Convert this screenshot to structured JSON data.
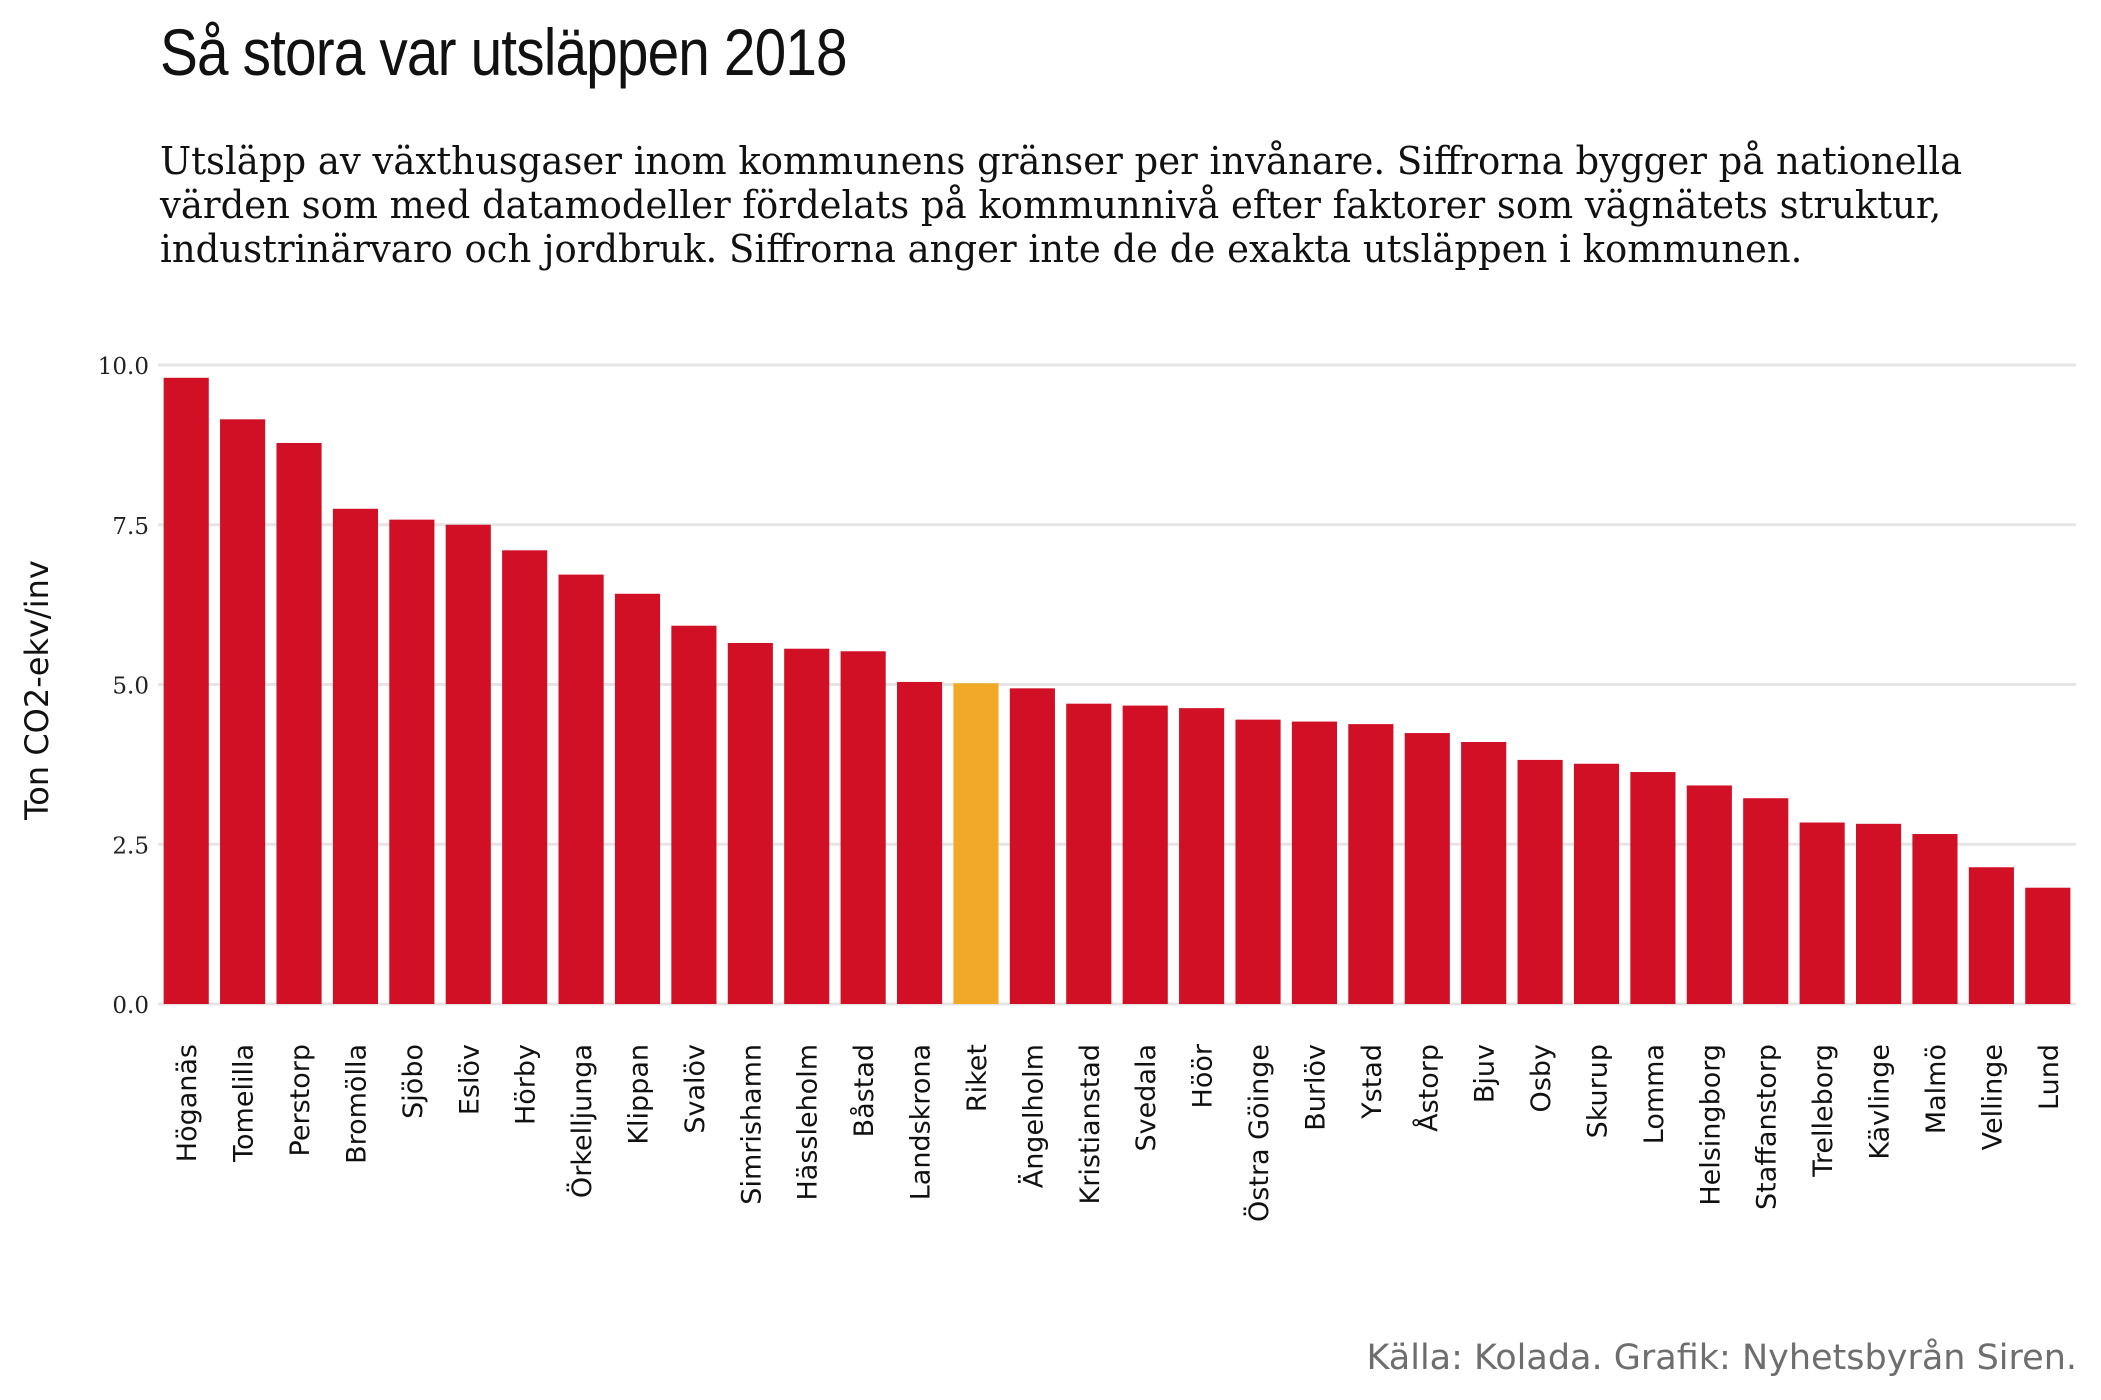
{
  "header": {
    "title": "Så stora var utsläppen 2018",
    "subtitle": "Utsläpp av växthusgaser inom kommunens gränser per invånare. Siffrorna bygger på nationella värden som med datamodeller fördelats på kommunnivå efter faktorer som vägnätets struktur, industrinärvaro och jordbruk. Siffrorna anger inte de de exakta utsläppen i kommunen."
  },
  "caption": "Källa: Kolada. Grafik: Nyhetsbyrån Siren.",
  "colors": {
    "bar": "#d11026",
    "highlight": "#f2a928",
    "grid": "#e5e5e5",
    "text": "#222222"
  },
  "chart_data": {
    "type": "bar",
    "title": "Så stora var utsläppen 2018",
    "xlabel": "",
    "ylabel": "Ton CO2-ekv/inv",
    "ylim": [
      0,
      10
    ],
    "yticks": [
      "0.0",
      "2.5",
      "5.0",
      "7.5",
      "10.0"
    ],
    "grid": true,
    "legend": "none",
    "highlight": "Riket",
    "categories": [
      "Höganäs",
      "Tomelilla",
      "Perstorp",
      "Bromölla",
      "Sjöbo",
      "Eslöv",
      "Hörby",
      "Örkelljunga",
      "Klippan",
      "Svalöv",
      "Simrishamn",
      "Hässleholm",
      "Båstad",
      "Landskrona",
      "Riket",
      "Ängelholm",
      "Kristianstad",
      "Svedala",
      "Höör",
      "Östra Göinge",
      "Burlöv",
      "Ystad",
      "Åstorp",
      "Bjuv",
      "Osby",
      "Skurup",
      "Lomma",
      "Helsingborg",
      "Staffanstorp",
      "Trelleborg",
      "Kävlinge",
      "Malmö",
      "Vellinge",
      "Lund"
    ],
    "values": [
      9.8,
      9.15,
      8.78,
      7.75,
      7.58,
      7.5,
      7.1,
      6.72,
      6.42,
      5.92,
      5.65,
      5.56,
      5.52,
      5.04,
      5.02,
      4.94,
      4.7,
      4.67,
      4.63,
      4.45,
      4.42,
      4.38,
      4.24,
      4.1,
      3.82,
      3.76,
      3.63,
      3.42,
      3.22,
      2.84,
      2.82,
      2.66,
      2.14,
      1.82
    ]
  }
}
